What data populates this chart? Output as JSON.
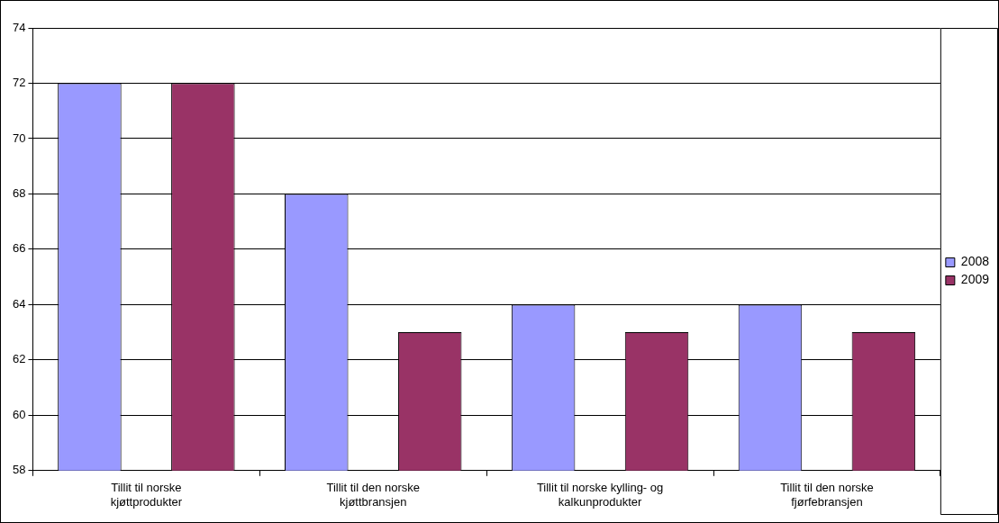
{
  "chart_data": {
    "type": "bar",
    "categories": [
      "Tillit til norske kjøttprodukter",
      "Tillit til den norske kjøttbransjen",
      "Tillit til norske kylling- og kalkunprodukter",
      "Tillit til den norske fjørfebransjen"
    ],
    "series": [
      {
        "name": "2008",
        "color": "#9999ff",
        "values": [
          72,
          68,
          64,
          64
        ]
      },
      {
        "name": "2009",
        "color": "#993366",
        "values": [
          72,
          63,
          63,
          63
        ]
      }
    ],
    "ylim": [
      58,
      74
    ],
    "yticks": [
      58,
      60,
      62,
      64,
      66,
      68,
      70,
      72,
      74
    ],
    "grid": "y",
    "legend": "right"
  }
}
